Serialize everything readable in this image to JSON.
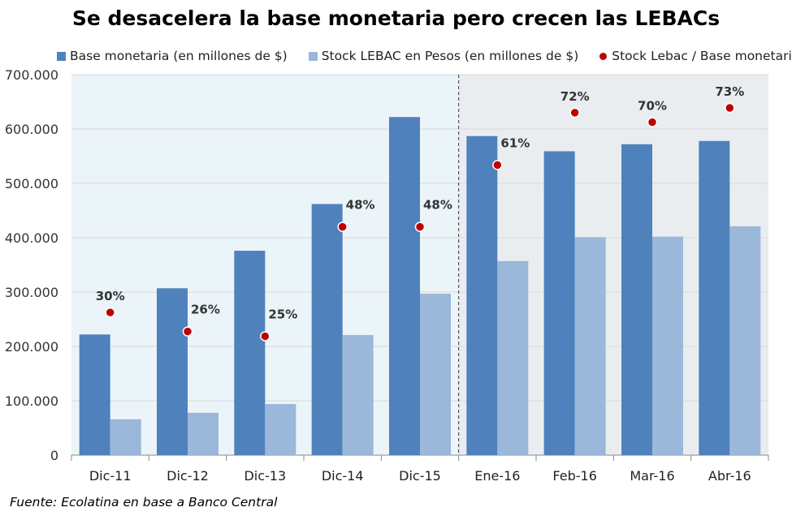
{
  "chart_data": {
    "type": "bar",
    "title": "Se desacelera la base monetaria pero crecen las LEBACs",
    "categories": [
      "Dic-11",
      "Dic-12",
      "Dic-13",
      "Dic-14",
      "Dic-15",
      "Ene-16",
      "Feb-16",
      "Mar-16",
      "Abr-16"
    ],
    "series": [
      {
        "name": "Base monetaria (en millones de $)",
        "type": "bar",
        "color": "#4f81bd",
        "values": [
          222000,
          307000,
          376000,
          462000,
          622000,
          587000,
          559000,
          572000,
          578000
        ]
      },
      {
        "name": "Stock LEBAC en Pesos (en millones de $)",
        "type": "bar",
        "color": "#9bb7d9",
        "values": [
          66000,
          78000,
          94000,
          221000,
          297000,
          357000,
          401000,
          402000,
          421000
        ]
      },
      {
        "name": "Stock Lebac / Base monetaria",
        "type": "scatter",
        "color": "#c00000",
        "values": [
          0.3,
          0.26,
          0.25,
          0.48,
          0.48,
          0.61,
          0.72,
          0.7,
          0.73
        ],
        "labels": [
          "30%",
          "26%",
          "25%",
          "48%",
          "48%",
          "61%",
          "72%",
          "70%",
          "73%"
        ]
      }
    ],
    "ylim": [
      0,
      700000
    ],
    "yticks": [
      0,
      100000,
      200000,
      300000,
      400000,
      500000,
      600000,
      700000
    ],
    "ytick_labels": [
      "0",
      "100.000",
      "200.000",
      "300.000",
      "400.000",
      "500.000",
      "600.000",
      "700.000"
    ],
    "legend_position": "top",
    "grid": "horizontal",
    "region_split_after": "Dic-15",
    "region_colors": [
      "#ebf4f8",
      "#eaedf0"
    ],
    "source": "Fuente: Ecolatina en base a Banco Central"
  }
}
